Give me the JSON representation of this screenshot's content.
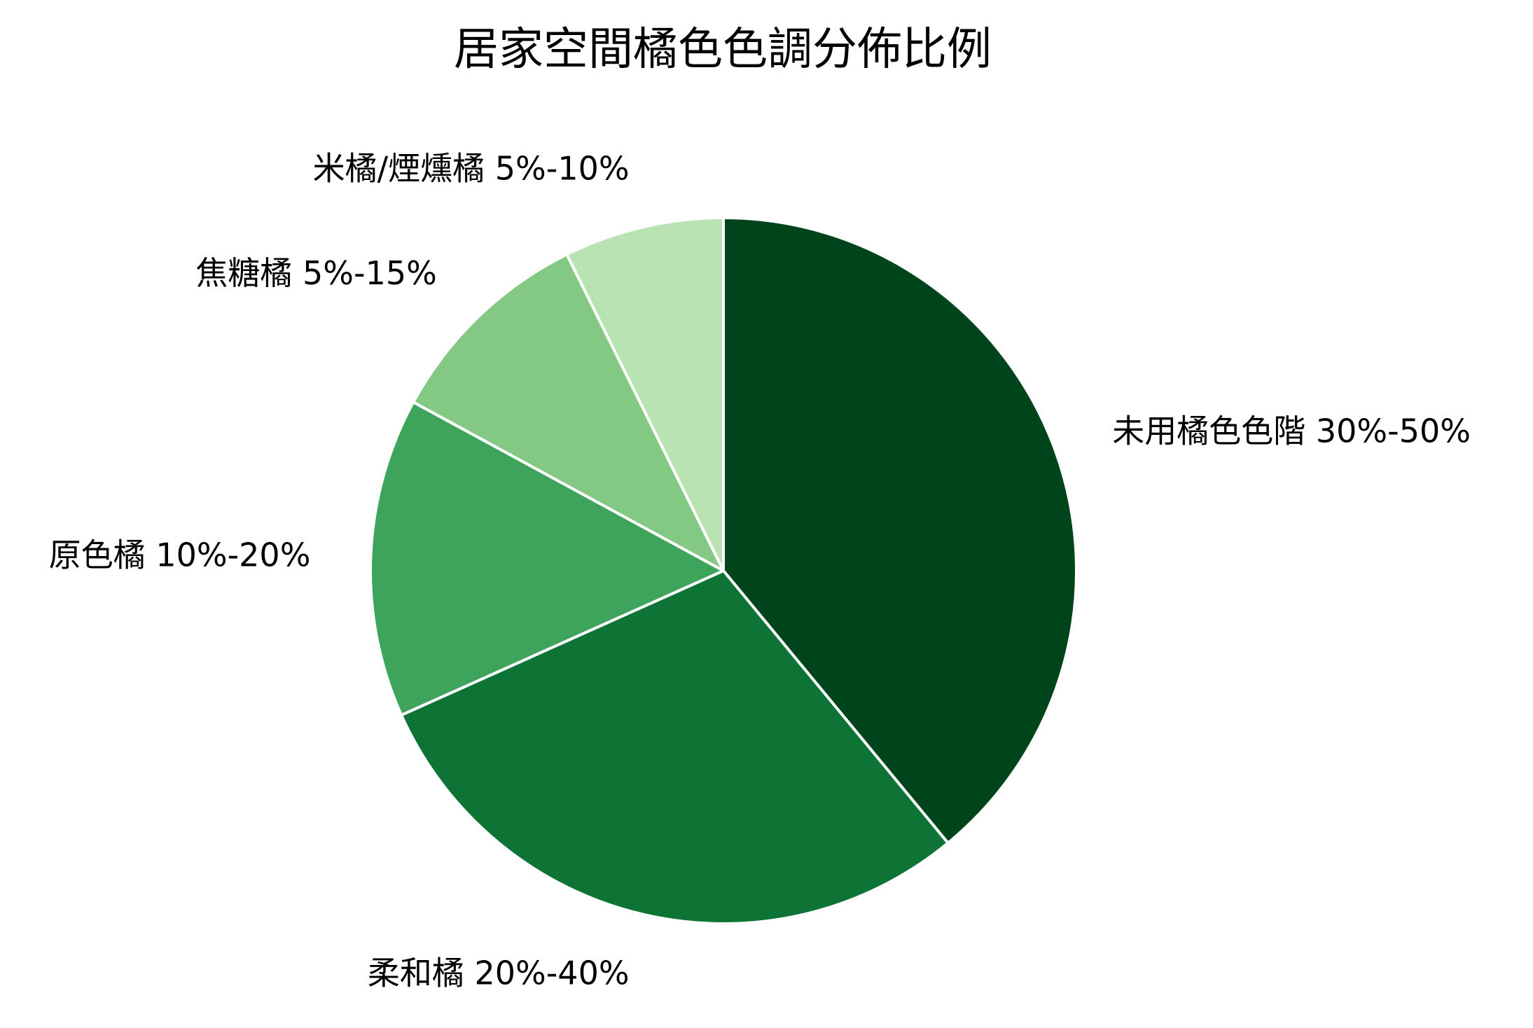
{
  "chart_data": {
    "type": "pie",
    "title": "居家空間橘色色調分佈比例",
    "start_angle_deg": 90,
    "direction": "clockwise",
    "slices": [
      {
        "label": "未用橘色色階 30%-50%",
        "value": 40,
        "color": "#00441b"
      },
      {
        "label": "柔和橘 20%-40%",
        "value": 30,
        "color": "#0d7436"
      },
      {
        "label": "原色橘 10%-20%",
        "value": 15,
        "color": "#3fa45b"
      },
      {
        "label": "焦糖橘 5%-15%",
        "value": 10,
        "color": "#83c983"
      },
      {
        "label": "米橘/煙燻橘 5%-10%",
        "value": 7.5,
        "color": "#b9e3b3"
      }
    ],
    "legend": "none",
    "grid": false
  }
}
